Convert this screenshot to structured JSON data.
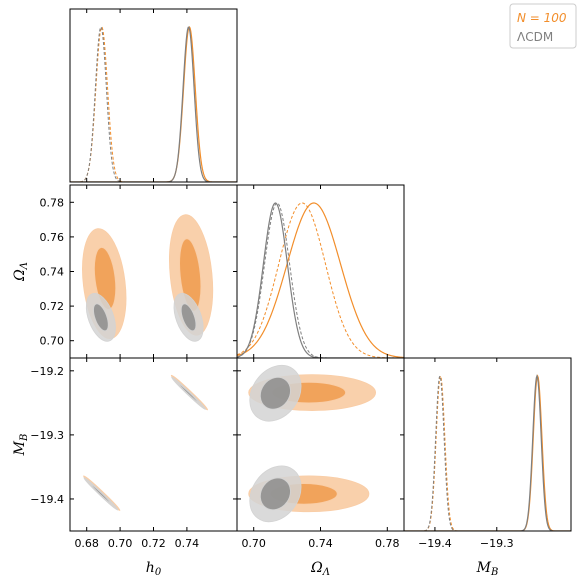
{
  "chart_data": {
    "type": "corner",
    "parameters": [
      {
        "key": "h0",
        "label": "h",
        "sub": "0",
        "range": [
          0.67,
          0.77
        ],
        "ticks": [
          0.68,
          0.7,
          0.72,
          0.74
        ],
        "tick_labels": [
          "0.68",
          "0.70",
          "0.72",
          "0.74"
        ]
      },
      {
        "key": "omega",
        "label": "Ω",
        "sub": "Λ",
        "range": [
          0.69,
          0.79
        ],
        "ticks": [
          0.7,
          0.72,
          0.74,
          0.76,
          0.78
        ],
        "tick_labels": [
          "0.70",
          "0.72",
          "0.74",
          "0.76",
          "0.78"
        ],
        "x_ticks": [
          0.7,
          0.74,
          0.78
        ],
        "x_tick_labels": [
          "0.70",
          "0.74",
          "0.78"
        ]
      },
      {
        "key": "MB",
        "label": "M",
        "sub": "B",
        "range": [
          -19.45,
          -19.18
        ],
        "ticks": [
          -19.4,
          -19.3,
          -19.2
        ],
        "tick_labels": [
          "−19.4",
          "−19.3",
          "−19.2"
        ],
        "x_ticks": [
          -19.4,
          -19.3
        ],
        "x_tick_labels": [
          "−19.4",
          "−19.3"
        ]
      }
    ],
    "legend": {
      "placement": "top-right",
      "entries": [
        {
          "label": "N = 100",
          "color": "#f28e2b"
        },
        {
          "label": "ΛCDM",
          "color": "#808080"
        }
      ]
    },
    "series": [
      {
        "name": "N = 100",
        "color": "#f28e2b",
        "light_color": "#f9cda6",
        "dark_color": "#f0a056"
      },
      {
        "name": "ΛCDM",
        "color": "#7f7f7f",
        "light_color": "#d3d3d3",
        "dark_color": "#8c8c8c"
      }
    ],
    "marginals": {
      "h0": [
        {
          "series": 0,
          "style": "dashed",
          "mu": 0.689,
          "sigma": 0.0035
        },
        {
          "series": 1,
          "style": "dashed",
          "mu": 0.6885,
          "sigma": 0.0033
        },
        {
          "series": 0,
          "style": "solid",
          "mu": 0.7415,
          "sigma": 0.0035
        },
        {
          "series": 1,
          "style": "solid",
          "mu": 0.741,
          "sigma": 0.0033
        }
      ],
      "omega": [
        {
          "series": 0,
          "style": "dashed",
          "mu": 0.729,
          "sigma": 0.014
        },
        {
          "series": 1,
          "style": "dashed",
          "mu": 0.714,
          "sigma": 0.0075
        },
        {
          "series": 0,
          "style": "solid",
          "mu": 0.736,
          "sigma": 0.016
        },
        {
          "series": 1,
          "style": "solid",
          "mu": 0.713,
          "sigma": 0.0072
        }
      ],
      "MB": [
        {
          "series": 0,
          "style": "dashed",
          "mu": -19.391,
          "sigma": 0.007
        },
        {
          "series": 1,
          "style": "dashed",
          "mu": -19.392,
          "sigma": 0.0068
        },
        {
          "series": 0,
          "style": "solid",
          "mu": -19.234,
          "sigma": 0.007
        },
        {
          "series": 1,
          "style": "solid",
          "mu": -19.235,
          "sigma": 0.0068
        }
      ]
    },
    "contours": {
      "h0_omega": [
        {
          "series": 0,
          "level": "outer",
          "cx": 0.6905,
          "cy": 0.733,
          "rx": 0.0125,
          "ry": 0.032,
          "rot": 0.12
        },
        {
          "series": 0,
          "level": "inner",
          "cx": 0.691,
          "cy": 0.736,
          "rx": 0.006,
          "ry": 0.018,
          "rot": 0.12
        },
        {
          "series": 0,
          "level": "outer",
          "cx": 0.7425,
          "cy": 0.738,
          "rx": 0.0125,
          "ry": 0.035,
          "rot": 0.1
        },
        {
          "series": 0,
          "level": "inner",
          "cx": 0.742,
          "cy": 0.738,
          "rx": 0.006,
          "ry": 0.021,
          "rot": 0.1
        },
        {
          "series": 1,
          "level": "outer",
          "cx": 0.6885,
          "cy": 0.7135,
          "rx": 0.0075,
          "ry": 0.0145,
          "rot": 0.35
        },
        {
          "series": 1,
          "level": "inner",
          "cx": 0.6885,
          "cy": 0.7135,
          "rx": 0.0035,
          "ry": 0.0082,
          "rot": 0.35
        },
        {
          "series": 1,
          "level": "outer",
          "cx": 0.741,
          "cy": 0.7135,
          "rx": 0.0075,
          "ry": 0.0145,
          "rot": 0.35
        },
        {
          "series": 1,
          "level": "inner",
          "cx": 0.741,
          "cy": 0.7135,
          "rx": 0.0035,
          "ry": 0.0082,
          "rot": 0.35
        }
      ],
      "h0_MB": [
        {
          "series": 0,
          "level": "outer",
          "cx": 0.689,
          "cy": -19.391,
          "rx": 0.015,
          "ry": 0.0028,
          "rot": -0.76
        },
        {
          "series": 0,
          "level": "inner",
          "cx": 0.689,
          "cy": -19.391,
          "rx": 0.0085,
          "ry": 0.0014,
          "rot": -0.76
        },
        {
          "series": 1,
          "level": "outer",
          "cx": 0.6885,
          "cy": -19.392,
          "rx": 0.014,
          "ry": 0.0026,
          "rot": -0.76
        },
        {
          "series": 1,
          "level": "inner",
          "cx": 0.6885,
          "cy": -19.392,
          "rx": 0.008,
          "ry": 0.0013,
          "rot": -0.76
        },
        {
          "series": 0,
          "level": "outer",
          "cx": 0.7415,
          "cy": -19.234,
          "rx": 0.015,
          "ry": 0.0028,
          "rot": -0.76
        },
        {
          "series": 0,
          "level": "inner",
          "cx": 0.7415,
          "cy": -19.234,
          "rx": 0.0085,
          "ry": 0.0014,
          "rot": -0.76
        },
        {
          "series": 1,
          "level": "outer",
          "cx": 0.741,
          "cy": -19.235,
          "rx": 0.014,
          "ry": 0.0026,
          "rot": -0.76
        },
        {
          "series": 1,
          "level": "inner",
          "cx": 0.741,
          "cy": -19.235,
          "rx": 0.008,
          "ry": 0.0013,
          "rot": -0.76
        }
      ],
      "omega_MB": [
        {
          "series": 0,
          "level": "outer",
          "cx": 0.735,
          "cy": -19.234,
          "rx": 0.038,
          "ry": 0.028,
          "rot": 0.0
        },
        {
          "series": 0,
          "level": "inner",
          "cx": 0.733,
          "cy": -19.234,
          "rx": 0.022,
          "ry": 0.016,
          "rot": 0.0
        },
        {
          "series": 0,
          "level": "outer",
          "cx": 0.733,
          "cy": -19.392,
          "rx": 0.036,
          "ry": 0.028,
          "rot": 0.0
        },
        {
          "series": 0,
          "level": "inner",
          "cx": 0.73,
          "cy": -19.392,
          "rx": 0.02,
          "ry": 0.016,
          "rot": 0.0
        },
        {
          "series": 1,
          "level": "outer",
          "cx": 0.713,
          "cy": -19.235,
          "rx": 0.018,
          "ry": 0.036,
          "rot": 0.95
        },
        {
          "series": 1,
          "level": "inner",
          "cx": 0.713,
          "cy": -19.235,
          "rx": 0.01,
          "ry": 0.022,
          "rot": 0.95
        },
        {
          "series": 1,
          "level": "outer",
          "cx": 0.713,
          "cy": -19.392,
          "rx": 0.018,
          "ry": 0.036,
          "rot": 0.95
        },
        {
          "series": 1,
          "level": "inner",
          "cx": 0.713,
          "cy": -19.392,
          "rx": 0.01,
          "ry": 0.022,
          "rot": 0.95
        }
      ]
    }
  }
}
